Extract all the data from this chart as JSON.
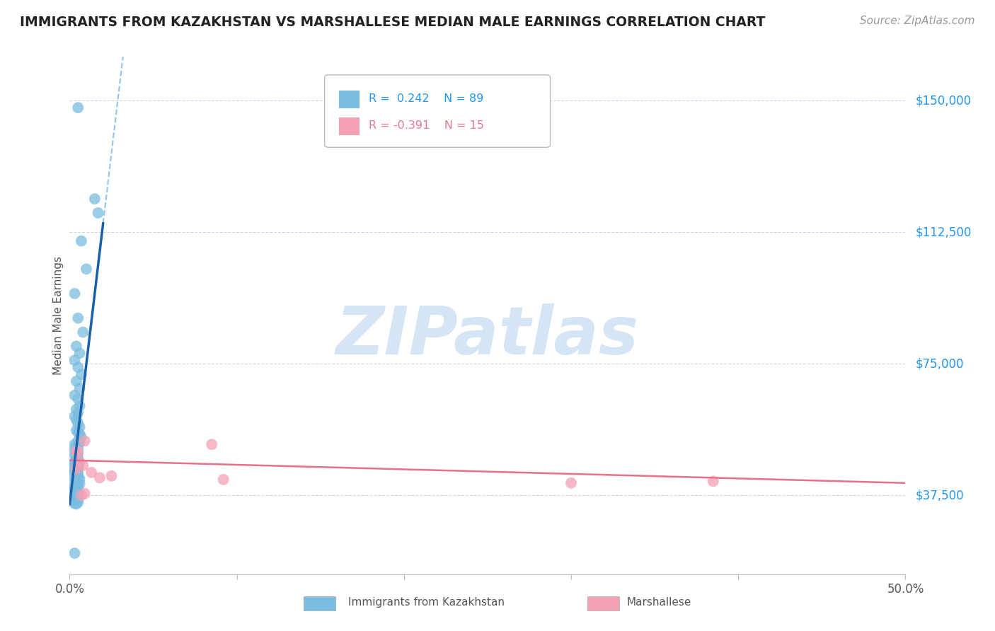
{
  "title": "IMMIGRANTS FROM KAZAKHSTAN VS MARSHALLESE MEDIAN MALE EARNINGS CORRELATION CHART",
  "source": "Source: ZipAtlas.com",
  "ylabel": "Median Male Earnings",
  "x_min": 0.0,
  "x_max": 50.0,
  "y_min": 15000,
  "y_max": 162500,
  "y_ticks": [
    37500,
    75000,
    112500,
    150000
  ],
  "y_tick_labels": [
    "$37,500",
    "$75,000",
    "$112,500",
    "$150,000"
  ],
  "legend_blue_R": "0.242",
  "legend_blue_N": "89",
  "legend_pink_R": "-0.391",
  "legend_pink_N": "15",
  "blue_color": "#7bbde0",
  "pink_color": "#f4a0b5",
  "blue_line_color": "#1a5fa8",
  "blue_dash_color": "#90c4e8",
  "pink_line_color": "#e8708a",
  "watermark_color": "#d5e5f5",
  "background_color": "#ffffff",
  "grid_color": "#c8d8e8",
  "blue_dots_x": [
    0.5,
    1.5,
    1.7,
    0.7,
    1.0,
    0.3,
    0.5,
    0.8,
    0.4,
    0.6,
    0.3,
    0.5,
    0.7,
    0.4,
    0.6,
    0.3,
    0.5,
    0.6,
    0.4,
    0.5,
    0.3,
    0.4,
    0.5,
    0.6,
    0.4,
    0.5,
    0.6,
    0.7,
    0.5,
    0.6,
    0.3,
    0.4,
    0.5,
    0.3,
    0.4,
    0.5,
    0.3,
    0.4,
    0.5,
    0.4,
    0.3,
    0.4,
    0.3,
    0.4,
    0.5,
    0.3,
    0.4,
    0.5,
    0.3,
    0.4,
    0.3,
    0.4,
    0.5,
    0.3,
    0.4,
    0.5,
    0.4,
    0.5,
    0.6,
    0.3,
    0.4,
    0.5,
    0.4,
    0.5,
    0.6,
    0.3,
    0.4,
    0.5,
    0.3,
    0.4,
    0.3,
    0.4,
    0.3,
    0.4,
    0.5,
    0.4,
    0.5,
    0.3,
    0.4,
    0.5,
    0.3,
    0.4,
    0.5,
    0.3,
    0.4,
    0.5,
    0.3,
    0.4,
    0.3
  ],
  "blue_dots_y": [
    148000,
    122000,
    118000,
    110000,
    102000,
    95000,
    88000,
    84000,
    80000,
    78000,
    76000,
    74000,
    72000,
    70000,
    68000,
    66000,
    65000,
    63000,
    62000,
    61000,
    60000,
    59000,
    58000,
    57000,
    56000,
    55500,
    55000,
    54000,
    53000,
    52500,
    52000,
    51500,
    51000,
    50500,
    50000,
    49500,
    49000,
    48500,
    48000,
    47500,
    47000,
    46500,
    46200,
    46000,
    45800,
    45500,
    45300,
    45100,
    44800,
    44500,
    44200,
    44000,
    43800,
    43500,
    43200,
    43000,
    42800,
    42500,
    42200,
    42000,
    41800,
    41500,
    41200,
    41000,
    40800,
    40500,
    40200,
    40000,
    39800,
    39500,
    39200,
    39000,
    38800,
    38500,
    38200,
    38000,
    37800,
    37500,
    37200,
    37000,
    36800,
    36500,
    36200,
    36000,
    35800,
    35500,
    35200,
    35000,
    21000
  ],
  "pink_dots_x": [
    0.4,
    0.8,
    1.3,
    1.8,
    0.6,
    0.9,
    2.5,
    8.5,
    9.2,
    0.5,
    0.9,
    0.4,
    0.7,
    30.0,
    38.5
  ],
  "pink_dots_y": [
    50000,
    46000,
    44000,
    42500,
    47000,
    53000,
    43000,
    52000,
    42000,
    50000,
    38000,
    45000,
    37500,
    41000,
    41500
  ],
  "blue_line_slope": 40000,
  "blue_line_intercept": 35000,
  "blue_solid_x_end": 2.0,
  "pink_line_slope": -130,
  "pink_line_intercept": 47500,
  "watermark_text": "ZIPatlas",
  "watermark_fontsize": 68,
  "title_fontsize": 13.5,
  "source_fontsize": 11
}
